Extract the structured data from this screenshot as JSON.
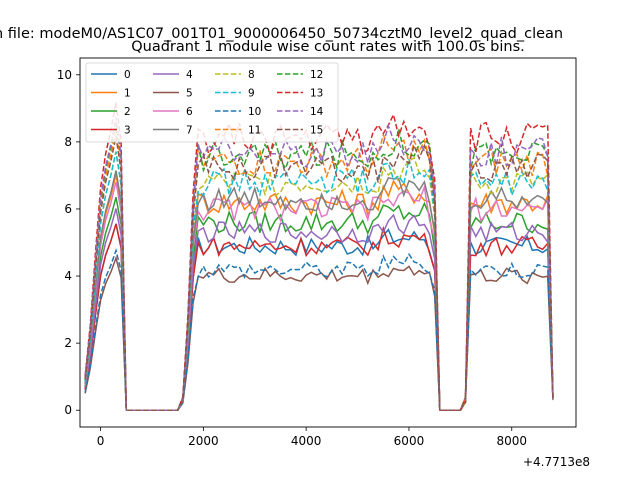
{
  "figure": {
    "suptitle": "n file: modeM0/AS1C07_001T01_9000006450_50734cztM0_level2_quad_clean",
    "title": "Quadrant 1 module wise count rates with 100.0s bins."
  },
  "chart_data": {
    "type": "line",
    "x_offset_label": "+4.7713e8",
    "xticks": [
      0,
      2000,
      4000,
      6000,
      8000
    ],
    "xtick_labels": [
      "0",
      "2000",
      "4000",
      "6000",
      "8000"
    ],
    "yticks": [
      0,
      2,
      4,
      6,
      8,
      10
    ],
    "ytick_labels": [
      "0",
      "2",
      "4",
      "6",
      "8",
      "10"
    ],
    "xlim": [
      -400,
      9250
    ],
    "ylim": [
      -0.5,
      10.5
    ],
    "grid": false,
    "legend_placement": "top-left",
    "segments": [
      {
        "start": -300,
        "end": 400,
        "rise": true
      },
      {
        "start": 500,
        "end": 1500,
        "zero": true
      },
      {
        "start": 1600,
        "end": 6500,
        "rise": true
      },
      {
        "start": 6600,
        "end": 7000,
        "zero": true
      },
      {
        "start": 7100,
        "end": 8800,
        "rise": true
      }
    ],
    "x": [
      -300,
      -200,
      -100,
      0,
      100,
      200,
      300,
      400,
      500,
      600,
      700,
      800,
      900,
      1000,
      1100,
      1200,
      1300,
      1400,
      1500,
      1600,
      1700,
      1800,
      1900,
      2000,
      2100,
      2200,
      2300,
      2400,
      2500,
      2600,
      2700,
      2800,
      2900,
      3000,
      3100,
      3200,
      3300,
      3400,
      3500,
      3600,
      3700,
      3800,
      3900,
      4000,
      4100,
      4200,
      4300,
      4400,
      4500,
      4600,
      4700,
      4800,
      4900,
      5000,
      5100,
      5200,
      5300,
      5400,
      5500,
      5600,
      5700,
      5800,
      5900,
      6000,
      6100,
      6200,
      6300,
      6400,
      6500,
      6600,
      6700,
      6800,
      6900,
      7000,
      7100,
      7200,
      7300,
      7400,
      7500,
      7600,
      7700,
      7800,
      7900,
      8000,
      8100,
      8200,
      8300,
      8400,
      8500,
      8600,
      8700,
      8800
    ],
    "series": [
      {
        "name": "0",
        "color": "#1f77b4",
        "dash": "solid",
        "level": 4.9
      },
      {
        "name": "1",
        "color": "#ff7f0e",
        "dash": "solid",
        "level": 6.2
      },
      {
        "name": "2",
        "color": "#2ca02c",
        "dash": "solid",
        "level": 5.6
      },
      {
        "name": "3",
        "color": "#d62728",
        "dash": "solid",
        "level": 4.9
      },
      {
        "name": "4",
        "color": "#9467bd",
        "dash": "solid",
        "level": 5.3
      },
      {
        "name": "5",
        "color": "#8c564b",
        "dash": "solid",
        "level": 4.0
      },
      {
        "name": "6",
        "color": "#e377c2",
        "dash": "solid",
        "level": 6.0
      },
      {
        "name": "7",
        "color": "#7f7f7f",
        "dash": "solid",
        "level": 6.3
      },
      {
        "name": "8",
        "color": "#bcbd22",
        "dash": "dashed",
        "level": 6.8
      },
      {
        "name": "9",
        "color": "#17becf",
        "dash": "dashed",
        "level": 6.8
      },
      {
        "name": "10",
        "color": "#1f77b4",
        "dash": "dashed",
        "level": 4.2
      },
      {
        "name": "11",
        "color": "#ff7f0e",
        "dash": "dashed",
        "level": 7.4
      },
      {
        "name": "12",
        "color": "#2ca02c",
        "dash": "dashed",
        "level": 7.6
      },
      {
        "name": "13",
        "color": "#d62728",
        "dash": "dashed",
        "level": 8.1
      },
      {
        "name": "14",
        "color": "#9467bd",
        "dash": "dashed",
        "level": 7.7
      },
      {
        "name": "15",
        "color": "#8c564b",
        "dash": "dashed",
        "level": 7.2
      }
    ]
  }
}
